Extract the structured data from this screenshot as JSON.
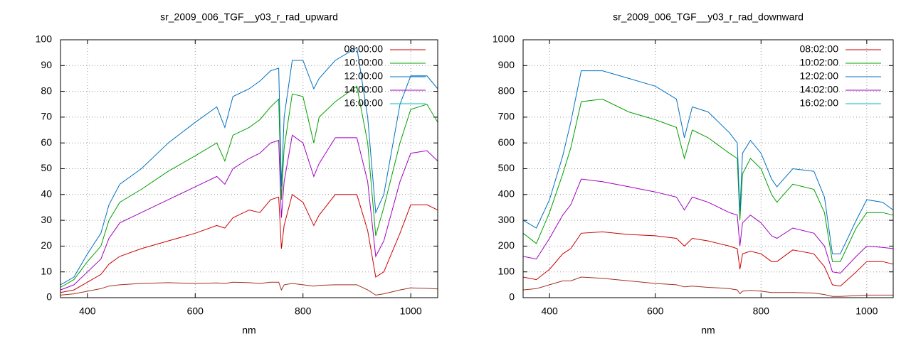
{
  "chart_data": [
    {
      "type": "line",
      "title": "sr_2009_006_TGF__y03_r_rad_upward",
      "xlabel": "nm",
      "grid": true,
      "legend": "upper right",
      "xlim": [
        350,
        1050
      ],
      "xticks": [
        400,
        600,
        800,
        1000
      ],
      "ylim": [
        0,
        100
      ],
      "yticks": [
        0,
        10,
        20,
        30,
        40,
        50,
        60,
        70,
        80,
        90,
        100
      ],
      "x": [
        350,
        375,
        400,
        425,
        440,
        460,
        500,
        550,
        600,
        640,
        655,
        670,
        700,
        720,
        740,
        755,
        760,
        765,
        780,
        800,
        820,
        830,
        860,
        900,
        920,
        935,
        950,
        980,
        1000,
        1030,
        1050
      ],
      "series": [
        {
          "name": "08:00:00",
          "color": "#cc0000",
          "values": [
            2,
            3,
            6,
            9,
            13,
            16,
            19,
            22,
            25,
            28,
            27,
            31,
            34,
            33,
            38,
            39,
            19,
            28,
            40,
            37,
            28,
            32,
            40,
            40,
            26,
            8,
            10,
            25,
            36,
            36,
            34
          ]
        },
        {
          "name": "10:00:00",
          "color": "#00a000",
          "values": [
            4,
            7,
            14,
            20,
            30,
            37,
            42,
            49,
            55,
            60,
            53,
            63,
            66,
            69,
            74,
            77,
            38,
            58,
            79,
            78,
            60,
            70,
            76,
            82,
            60,
            24,
            35,
            60,
            73,
            75,
            68
          ]
        },
        {
          "name": "12:00:00",
          "color": "#0070c0",
          "values": [
            5,
            8,
            17,
            25,
            36,
            44,
            50,
            60,
            68,
            74,
            66,
            78,
            81,
            84,
            88,
            89,
            43,
            70,
            92,
            92,
            81,
            85,
            92,
            97,
            70,
            33,
            40,
            75,
            86,
            86,
            81
          ]
        },
        {
          "name": "14:00:00",
          "color": "#a000c0",
          "values": [
            3,
            5,
            10,
            15,
            23,
            29,
            33,
            38,
            43,
            47,
            44,
            50,
            54,
            56,
            60,
            61,
            31,
            45,
            63,
            60,
            47,
            52,
            62,
            62,
            45,
            16,
            22,
            45,
            56,
            57,
            53
          ]
        },
        {
          "name": "16:00:00",
          "color": "#00c0c0",
          "values": [
            null,
            null,
            null,
            null,
            null,
            null,
            null,
            null,
            null,
            null,
            null,
            null,
            null,
            null,
            null,
            null,
            null,
            null,
            null,
            null,
            null,
            null,
            null,
            null,
            null,
            null,
            null,
            null,
            null,
            null,
            null
          ]
        },
        {
          "color": "#a03020",
          "values": [
            1,
            1.5,
            2.5,
            3.5,
            4.5,
            5,
            5.5,
            5.8,
            5.5,
            5.7,
            5.5,
            6,
            5.8,
            5.5,
            6,
            6,
            3,
            5,
            5.5,
            5,
            4.5,
            4.8,
            5,
            5,
            3,
            1,
            1.5,
            3,
            3.8,
            3.6,
            3.4
          ]
        }
      ]
    },
    {
      "type": "line",
      "title": "sr_2009_006_TGF__y03_r_rad_downward",
      "xlabel": "nm",
      "grid": true,
      "legend": "upper right",
      "xlim": [
        350,
        1050
      ],
      "xticks": [
        400,
        600,
        800,
        1000
      ],
      "ylim": [
        0,
        1000
      ],
      "yticks": [
        0,
        100,
        200,
        300,
        400,
        500,
        600,
        700,
        800,
        900,
        1000
      ],
      "x": [
        350,
        375,
        400,
        425,
        440,
        460,
        500,
        550,
        600,
        640,
        655,
        670,
        700,
        720,
        740,
        755,
        760,
        765,
        780,
        800,
        820,
        830,
        860,
        900,
        920,
        935,
        950,
        980,
        1000,
        1030,
        1050
      ],
      "series": [
        {
          "name": "08:02:00",
          "color": "#cc0000",
          "values": [
            80,
            70,
            110,
            170,
            190,
            250,
            255,
            245,
            240,
            230,
            200,
            230,
            220,
            210,
            200,
            190,
            110,
            170,
            180,
            170,
            140,
            140,
            185,
            170,
            120,
            50,
            45,
            100,
            140,
            140,
            130
          ]
        },
        {
          "name": "10:02:00",
          "color": "#00a000",
          "values": [
            250,
            210,
            330,
            480,
            580,
            760,
            770,
            720,
            690,
            660,
            540,
            650,
            620,
            590,
            560,
            540,
            300,
            480,
            540,
            500,
            400,
            370,
            440,
            420,
            330,
            140,
            140,
            270,
            330,
            330,
            320
          ]
        },
        {
          "name": "12:02:00",
          "color": "#0070c0",
          "values": [
            300,
            270,
            380,
            550,
            680,
            880,
            880,
            850,
            820,
            770,
            620,
            740,
            720,
            680,
            640,
            600,
            330,
            560,
            610,
            560,
            460,
            430,
            500,
            490,
            390,
            170,
            170,
            300,
            380,
            370,
            340
          ]
        },
        {
          "name": "14:02:00",
          "color": "#a000c0",
          "values": [
            160,
            150,
            230,
            320,
            360,
            460,
            450,
            430,
            410,
            390,
            340,
            390,
            370,
            350,
            330,
            320,
            200,
            290,
            320,
            290,
            240,
            230,
            270,
            250,
            200,
            100,
            95,
            160,
            200,
            195,
            190
          ]
        },
        {
          "name": "16:02:00",
          "color": "#00c0c0",
          "values": [
            null,
            null,
            null,
            null,
            null,
            null,
            null,
            null,
            null,
            null,
            null,
            null,
            null,
            null,
            null,
            null,
            null,
            null,
            null,
            null,
            null,
            null,
            null,
            null,
            null,
            null,
            null,
            null,
            null,
            null,
            null
          ]
        },
        {
          "color": "#a03020",
          "values": [
            30,
            35,
            50,
            65,
            65,
            80,
            75,
            65,
            55,
            50,
            42,
            45,
            40,
            38,
            35,
            30,
            15,
            25,
            28,
            25,
            20,
            20,
            20,
            18,
            12,
            5,
            5,
            8,
            10,
            10,
            10
          ]
        }
      ]
    }
  ]
}
